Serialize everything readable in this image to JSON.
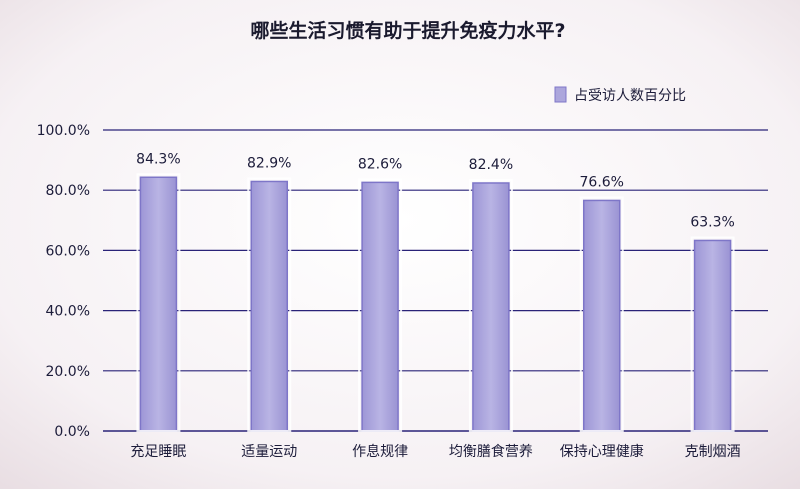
{
  "chart_data": {
    "type": "bar",
    "title": "哪些生活习惯有助于提升免疫力水平?",
    "categories": [
      "充足睡眠",
      "适量运动",
      "作息规律",
      "均衡膳食营养",
      "保持心理健康",
      "克制烟酒"
    ],
    "series": [
      {
        "name": "占受访人数百分比",
        "values": [
          84.3,
          82.9,
          82.6,
          82.4,
          76.6,
          63.3
        ]
      }
    ],
    "data_labels": [
      "84.3%",
      "82.9%",
      "82.6%",
      "82.4%",
      "76.6%",
      "63.3%"
    ],
    "y_ticks": [
      "0.0%",
      "20.0%",
      "40.0%",
      "60.0%",
      "80.0%",
      "100.0%"
    ],
    "ylim": [
      0,
      100
    ],
    "grid": true,
    "legend_position": "top-right",
    "colors": {
      "bar_fill": "#aca6dc",
      "bar_stroke": "#7e76c8",
      "grid": "#2a2378",
      "text": "#1c1c3a",
      "background": "#fbf6f8"
    }
  }
}
